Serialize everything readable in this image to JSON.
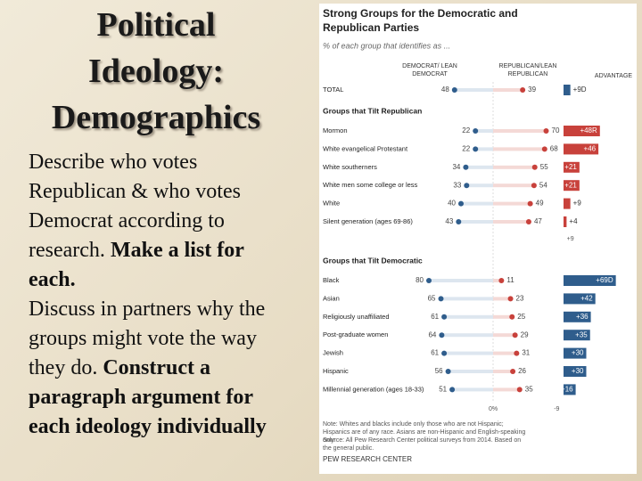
{
  "slide": {
    "title_lines": [
      "Political",
      "Ideology:",
      "Demographics"
    ],
    "paragraphs": [
      [
        {
          "text": "Describe who votes Republican & who votes Democrat according to research. ",
          "bold": false
        },
        {
          "text": "Make a list for each.",
          "bold": true
        }
      ],
      [
        {
          "text": "Discuss in partners why the groups might vote the way they do. ",
          "bold": false
        },
        {
          "text": "Construct a paragraph argument for each ideology individually",
          "bold": true
        }
      ]
    ]
  },
  "chart_data": {
    "type": "dot",
    "title": "Strong Groups for the Democratic and Republican Parties",
    "subtitle": "% of each group that identifies as ...",
    "dem_name": "DEMOCRAT/ LEAN DEMOCRAT",
    "rep_name": "REPUBLICAN/LEAN REPUBLICAN",
    "advantage_name": "ADVANTAGE",
    "dem_color": "#2f5d8c",
    "rep_color": "#c8413b",
    "total": {
      "category": "TOTAL",
      "dem": 48,
      "rep": 39,
      "advantage": 9,
      "advantage_label": "+9D",
      "color": "#2f5d8c"
    },
    "groups": [
      {
        "title": "Groups that Tilt Republican",
        "color": "#c8413b",
        "categories": [
          "Mormon",
          "White evangelical Protestant",
          "White southerners",
          "White men some college or less",
          "White",
          "Silent generation (ages 69-86)"
        ],
        "dem": [
          22,
          22,
          34,
          33,
          40,
          43
        ],
        "rep": [
          70,
          68,
          55,
          54,
          49,
          47
        ],
        "advantage": [
          48,
          46,
          21,
          21,
          9,
          4
        ],
        "advantage_labels": [
          "+48R",
          "+46",
          "+21",
          "+21",
          "+9",
          "+4"
        ]
      },
      {
        "title": "Groups that Tilt Democratic",
        "color": "#2f5d8c",
        "categories": [
          "Black",
          "Asian",
          "Religiously unaffiliated",
          "Post-graduate women",
          "Jewish",
          "Hispanic",
          "Millennial generation (ages 18-33)"
        ],
        "dem": [
          80,
          65,
          61,
          64,
          61,
          56,
          51
        ],
        "rep": [
          11,
          23,
          25,
          29,
          31,
          26,
          35
        ],
        "advantage": [
          69,
          42,
          36,
          35,
          30,
          30,
          16
        ],
        "advantage_labels": [
          "+69D",
          "+42",
          "+36",
          "+35",
          "+30",
          "+30",
          "+16"
        ]
      }
    ],
    "xticks": [
      {
        "value": 0,
        "label": "0%"
      }
    ],
    "advantage_ticks": [
      -9,
      {
        "value": 9,
        "label": "+9"
      }
    ],
    "note": "Note: Whites and blacks include only those who are not Hispanic; Hispanics are of any race. Asians are non-Hispanic and English-speaking only.",
    "source": "Source: All Pew Research Center political surveys from 2014. Based on the general public.",
    "credit": "PEW RESEARCH CENTER"
  }
}
